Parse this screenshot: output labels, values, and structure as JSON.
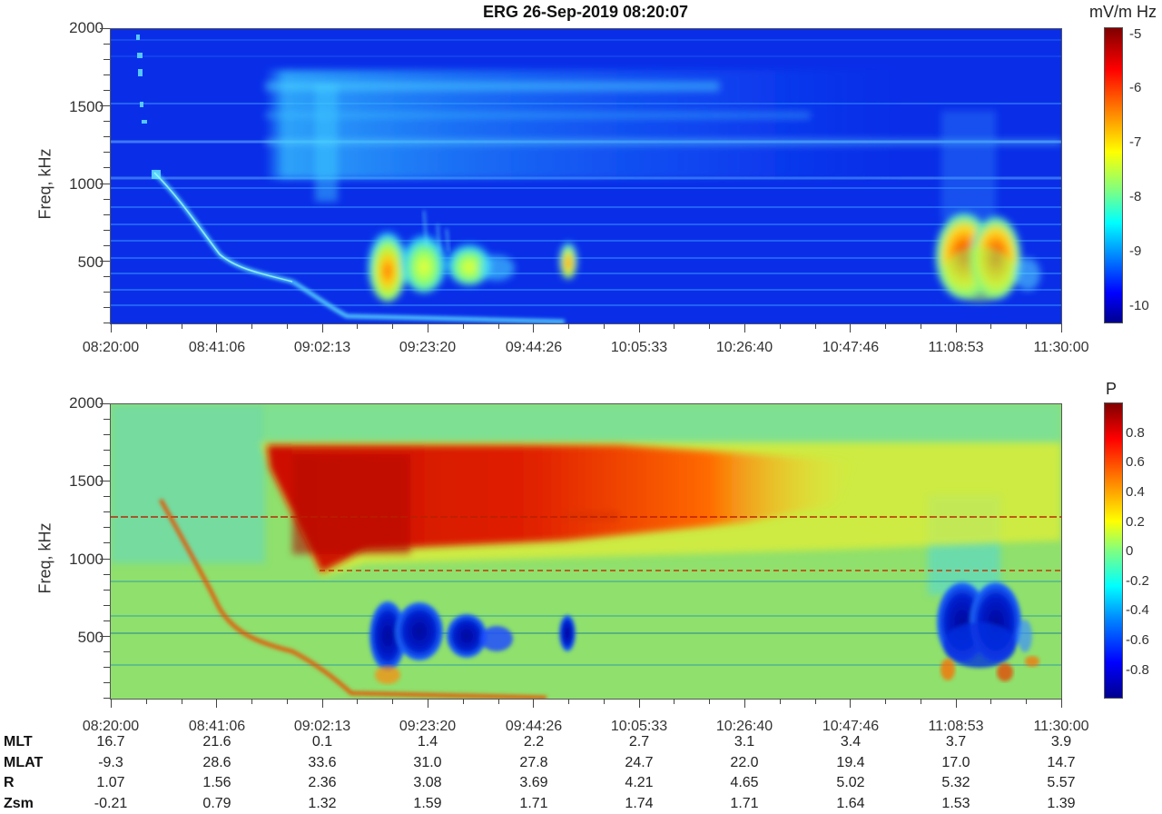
{
  "title": "ERG  26-Sep-2019 08:20:07",
  "chart_data": [
    {
      "type": "heatmap",
      "title": "ERG  26-Sep-2019 08:20:07",
      "panel": "top",
      "xlabel": "",
      "ylabel": "Freq, kHz",
      "ylim": [
        100,
        2000
      ],
      "yticks": [
        500,
        1000,
        1500,
        2000
      ],
      "x_ticks": [
        "08:20:00",
        "08:41:06",
        "09:02:13",
        "09:23:20",
        "09:44:26",
        "10:05:33",
        "10:26:40",
        "10:47:46",
        "11:08:53",
        "11:30:00"
      ],
      "colorbar": {
        "label": "mV/m Hz",
        "range": [
          -10.3,
          -4.9
        ],
        "ticks": [
          -5,
          -6,
          -7,
          -8,
          -9,
          -10
        ],
        "colormap": "jet"
      },
      "features": [
        {
          "name": "plasma line descending",
          "start": "08:26",
          "end": "09:50",
          "freq_start_kHz": 1070,
          "freq_end_kHz": 110,
          "level": -8.3
        },
        {
          "name": "broadband upper band",
          "start": "08:50",
          "end": "10:40",
          "freq_range_kHz": [
            900,
            1720
          ],
          "level": -8.4
        },
        {
          "name": "burst 1",
          "time": "09:17",
          "freq_range_kHz": [
            350,
            720
          ],
          "peak_level": -6.3
        },
        {
          "name": "burst 2",
          "time": "09:28",
          "freq_range_kHz": [
            400,
            850
          ],
          "peak_level": -7.4
        },
        {
          "name": "burst 3",
          "time": "09:34",
          "freq_range_kHz": [
            420,
            700
          ],
          "peak_level": -7.2
        },
        {
          "name": "burst 4",
          "time": "09:47",
          "freq_range_kHz": [
            450,
            680
          ],
          "peak_level": -6.4
        },
        {
          "name": "burst 5 (late)",
          "start": "11:07",
          "end": "11:23",
          "freq_range_kHz": [
            250,
            800
          ],
          "peak_level": -5.6
        }
      ]
    },
    {
      "type": "heatmap",
      "panel": "bottom",
      "xlabel": "",
      "ylabel": "Freq, kHz",
      "ylim": [
        100,
        2000
      ],
      "yticks": [
        500,
        1000,
        1500,
        2000
      ],
      "x_ticks": [
        "08:20:00",
        "08:41:06",
        "09:02:13",
        "09:23:20",
        "09:44:26",
        "10:05:33",
        "10:26:40",
        "10:47:46",
        "11:08:53",
        "11:30:00"
      ],
      "colorbar": {
        "label": "P",
        "range": [
          -1,
          1
        ],
        "ticks": [
          0.8,
          0.6,
          0.4,
          0.2,
          0,
          -0.2,
          -0.4,
          -0.6,
          -0.8
        ],
        "colormap": "jet"
      },
      "features": [
        {
          "name": "positive polarization band",
          "start": "08:53",
          "end": "11:00",
          "freq_range_kHz": [
            880,
            1720
          ],
          "value": 0.85
        },
        {
          "name": "descending line",
          "start": "08:28",
          "end": "09:50",
          "freq_start_kHz": 1000,
          "freq_end_kHz": 110,
          "value": 0.6
        },
        {
          "name": "negative bursts 09:15-09:45",
          "start": "09:15",
          "end": "09:48",
          "freq_range_kHz": [
            300,
            820
          ],
          "value": -0.9
        },
        {
          "name": "negative burst late",
          "start": "11:07",
          "end": "11:22",
          "freq_range_kHz": [
            220,
            760
          ],
          "value": -0.9
        }
      ]
    }
  ],
  "axes": {
    "ylabel": "Freq, kHz",
    "yticks": [
      "2000",
      "1500",
      "1000",
      "500"
    ],
    "xticks": [
      "08:20:00",
      "08:41:06",
      "09:02:13",
      "09:23:20",
      "09:44:26",
      "10:05:33",
      "10:26:40",
      "10:47:46",
      "11:08:53",
      "11:30:00"
    ]
  },
  "colorbar_top": {
    "title": "mV/m Hz",
    "ticks": [
      "-5",
      "-6",
      "-7",
      "-8",
      "-9",
      "-10"
    ]
  },
  "colorbar_bottom": {
    "title": "P",
    "ticks": [
      "0.8",
      "0.6",
      "0.4",
      "0.2",
      "0",
      "-0.2",
      "-0.4",
      "-0.6",
      "-0.8"
    ]
  },
  "ephemeris": {
    "rows": [
      {
        "name": "MLT",
        "values": [
          "16.7",
          "21.6",
          "0.1",
          "1.4",
          "2.2",
          "2.7",
          "3.1",
          "3.4",
          "3.7",
          "3.9"
        ]
      },
      {
        "name": "MLAT",
        "values": [
          "-9.3",
          "28.6",
          "33.6",
          "31.0",
          "27.8",
          "24.7",
          "22.0",
          "19.4",
          "17.0",
          "14.7"
        ]
      },
      {
        "name": "R",
        "values": [
          "1.07",
          "1.56",
          "2.36",
          "3.08",
          "3.69",
          "4.21",
          "4.65",
          "5.02",
          "5.32",
          "5.57"
        ]
      },
      {
        "name": "Zsm",
        "values": [
          "-0.21",
          "0.79",
          "1.32",
          "1.59",
          "1.71",
          "1.74",
          "1.71",
          "1.64",
          "1.53",
          "1.39"
        ]
      }
    ]
  },
  "colors": {
    "bg_top": "#0a2ee8",
    "bg_bottom": "#8fe06c",
    "jet_low": "#00008f",
    "jet_high": "#800000"
  }
}
